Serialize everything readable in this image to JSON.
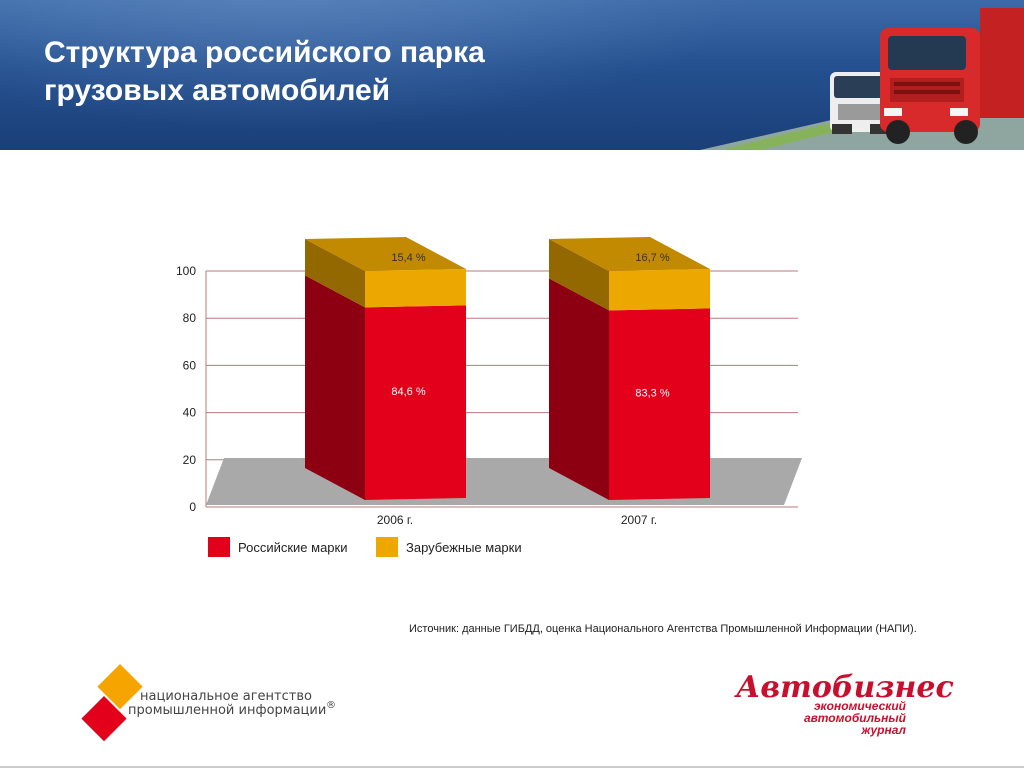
{
  "slide": {
    "title_line1": "Структура российского парка",
    "title_line2": "грузовых  автомобилей",
    "source": "Источник: данные ГИБДД, оценка Национального Агентства Промышленной Информации (НАПИ)."
  },
  "logos": {
    "napi_line1": "национальное агентство",
    "napi_line2": "промышленной информации",
    "napi_mark": "®",
    "autobiz_name": "Автобизнес",
    "autobiz_line1": "экономический",
    "autobiz_line2": "автомобильный",
    "autobiz_line3": "журнал"
  },
  "chart_data": {
    "type": "bar",
    "stacked": true,
    "three_d": true,
    "categories": [
      "2006 г.",
      "2007 г."
    ],
    "series": [
      {
        "name": "Российские марки",
        "values": [
          84.6,
          83.3
        ],
        "labels": [
          "84,6 %",
          "83,3 %"
        ],
        "color": "#e3001b"
      },
      {
        "name": "Зарубежные марки",
        "values": [
          15.4,
          16.7
        ],
        "labels": [
          "15,4 %",
          "16,7 %"
        ],
        "color": "#eda800"
      }
    ],
    "yticks": [
      "0",
      "20",
      "40",
      "60",
      "80",
      "100"
    ],
    "ylim": [
      0,
      100
    ],
    "grid": true,
    "legend_position": "bottom-left"
  }
}
